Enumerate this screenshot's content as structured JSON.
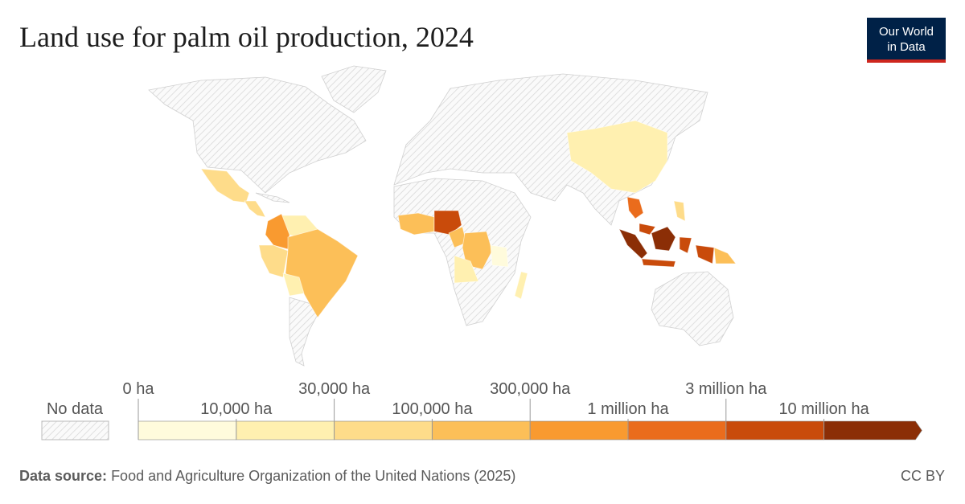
{
  "title": "Land use for palm oil production, 2024",
  "logo": [
    "Our World",
    "in Data"
  ],
  "legend": {
    "no_data": "No data",
    "ticks": [
      {
        "value": 0,
        "label": "0 ha"
      },
      {
        "value": 10000,
        "label": "10,000 ha"
      },
      {
        "value": 30000,
        "label": "30,000 ha"
      },
      {
        "value": 100000,
        "label": "100,000 ha"
      },
      {
        "value": 300000,
        "label": "300,000 ha"
      },
      {
        "value": 1000000,
        "label": "1 million ha"
      },
      {
        "value": 3000000,
        "label": "3 million ha"
      },
      {
        "value": 10000000,
        "label": "10 million ha"
      }
    ],
    "colors": [
      "#fffbdc",
      "#fff0b0",
      "#fedc8a",
      "#fcbf58",
      "#f99a30",
      "#ea6c1c",
      "#c94b0b",
      "#8b2e06"
    ]
  },
  "source": {
    "label": "Data source:",
    "text": "Food and Agriculture Organization of the United Nations (2025)"
  },
  "license": "CC BY"
}
